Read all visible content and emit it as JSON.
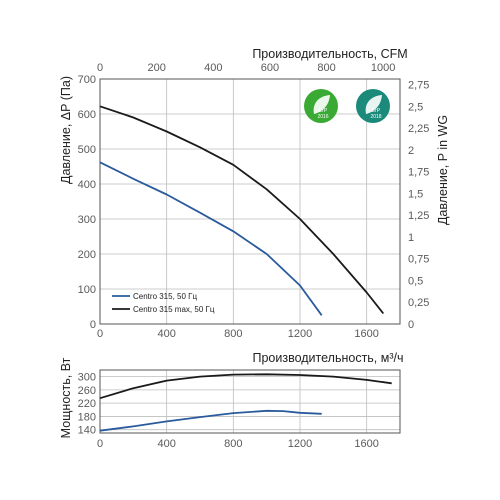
{
  "chart_data": [
    {
      "type": "line",
      "title": "",
      "xlabel": "",
      "ylabel": "Давление, ΔP (Па)",
      "top_axis_label": "Производительность, CFM",
      "right_axis_label": "Давление,  P in WG",
      "x_ticks": [
        "0",
        "400",
        "800",
        "1200",
        "1600"
      ],
      "y_ticks": [
        "0",
        "100",
        "200",
        "300",
        "400",
        "500",
        "600",
        "700"
      ],
      "top_ticks": [
        "0",
        "200",
        "400",
        "600",
        "800",
        "1000"
      ],
      "right_ticks": [
        "0",
        "0,25",
        "0,5",
        "0,75",
        "1",
        "1,25",
        "1,5",
        "1,75",
        "2",
        "2,25",
        "2,5",
        "2,75"
      ],
      "xlim": [
        0,
        1800
      ],
      "ylim": [
        0,
        700
      ],
      "grid": true,
      "legend": "bottom-left",
      "series": [
        {
          "name": "Centro 315, 50 Гц",
          "color": "#2a5b9c",
          "x": [
            0,
            200,
            400,
            600,
            800,
            1000,
            1200,
            1330
          ],
          "y": [
            462,
            415,
            370,
            318,
            265,
            200,
            110,
            25
          ]
        },
        {
          "name": "Centro 315 max, 50 Гц",
          "color": "#1a1a1a",
          "x": [
            0,
            200,
            400,
            600,
            800,
            1000,
            1200,
            1400,
            1600,
            1700
          ],
          "y": [
            622,
            590,
            550,
            505,
            455,
            385,
            300,
            200,
            90,
            30
          ]
        }
      ]
    },
    {
      "type": "line",
      "title": "",
      "xlabel": "Производительность, м³/ч",
      "ylabel": "Мощность, Вт",
      "x_ticks": [
        "0",
        "400",
        "800",
        "1200",
        "1600"
      ],
      "y_ticks": [
        "140",
        "180",
        "220",
        "260",
        "300"
      ],
      "xlim": [
        0,
        1800
      ],
      "ylim": [
        130,
        320
      ],
      "grid": true,
      "series": [
        {
          "color": "#2a5b9c",
          "x": [
            0,
            200,
            400,
            600,
            800,
            1000,
            1100,
            1200,
            1330
          ],
          "y": [
            137,
            150,
            165,
            178,
            190,
            197,
            196,
            191,
            188
          ]
        },
        {
          "color": "#1a1a1a",
          "x": [
            0,
            200,
            400,
            600,
            800,
            1000,
            1200,
            1400,
            1600,
            1750
          ],
          "y": [
            235,
            265,
            288,
            300,
            306,
            307,
            305,
            300,
            290,
            280
          ]
        }
      ]
    }
  ],
  "badges": [
    {
      "text": "ErP",
      "year": "2016",
      "color": "#3aaa35"
    },
    {
      "text": "ErP",
      "year": "2018",
      "color": "#1b8a7a"
    }
  ]
}
